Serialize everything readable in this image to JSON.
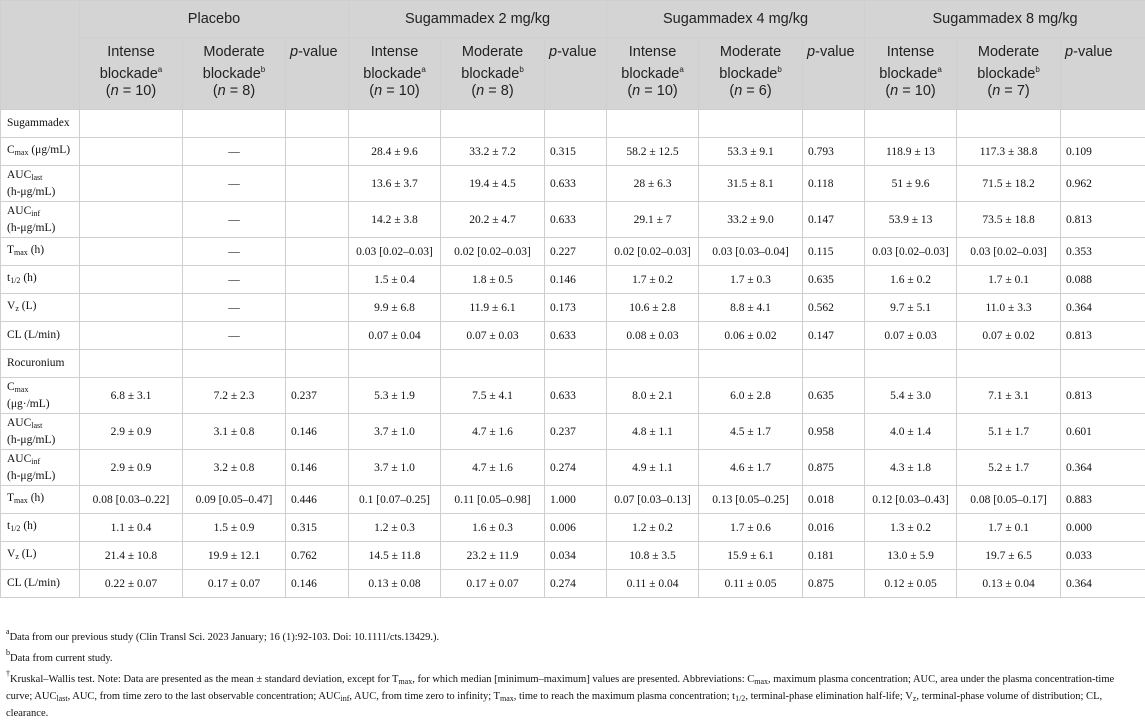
{
  "groups": [
    "Placebo",
    "Sugammadex 2 mg/kg",
    "Sugammadex 4 mg/kg",
    "Sugammadex 8 mg/kg"
  ],
  "subheads": [
    {
      "l1": "Intense",
      "l2": "blockade",
      "mark": "a",
      "n": "10"
    },
    {
      "l1": "Moderate",
      "l2": "blockade",
      "mark": "b",
      "n": "8"
    },
    {
      "pv": "p",
      "pv2": "-value"
    },
    {
      "l1": "Intense",
      "l2": "blockade",
      "mark": "a",
      "n": "10"
    },
    {
      "l1": "Moderate",
      "l2": "blockade",
      "mark": "b",
      "n": "8"
    },
    {
      "pv": "p",
      "pv2": "-value"
    },
    {
      "l1": "Intense",
      "l2": "blockade",
      "mark": "a",
      "n": "10"
    },
    {
      "l1": "Moderate",
      "l2": "blockade",
      "mark": "b",
      "n": "6"
    },
    {
      "pv": "p",
      "pv2": "-value"
    },
    {
      "l1": "Intense",
      "l2": "blockade",
      "mark": "a",
      "n": "10"
    },
    {
      "l1": "Moderate",
      "l2": "blockade",
      "mark": "b",
      "n": "7"
    },
    {
      "pv": "p",
      "pv2": "-value"
    }
  ],
  "n_prefix": "(",
  "n_letter": "n",
  "n_eq": " = ",
  "n_suffix": ")",
  "rows": [
    {
      "section": true,
      "label": "Sugammadex"
    },
    {
      "lbl": "C",
      "sub": "max",
      "rest": " (μg/mL)",
      "h": 28,
      "cells": [
        "",
        "—",
        "",
        "28.4 ± 9.6",
        "33.2 ± 7.2",
        "0.315",
        "58.2 ± 12.5",
        "53.3 ± 9.1",
        "0.793",
        "118.9 ± 13",
        "117.3 ± 38.8",
        "0.109"
      ]
    },
    {
      "lbl": "AUC",
      "sub": "last",
      "rest2": "(h-μg/mL)",
      "h": 36,
      "cells": [
        "",
        "—",
        "",
        "13.6 ± 3.7",
        "19.4 ± 4.5",
        "0.633",
        "28 ± 6.3",
        "31.5 ± 8.1",
        "0.118",
        "51 ± 9.6",
        "71.5 ± 18.2",
        "0.962"
      ]
    },
    {
      "lbl": "AUC",
      "sub": "inf",
      "rest2": "(h-μg/mL)",
      "h": 36,
      "cells": [
        "",
        "—",
        "",
        "14.2 ± 3.8",
        "20.2 ± 4.7",
        "0.633",
        "29.1 ± 7",
        "33.2 ± 9.0",
        "0.147",
        "53.9 ± 13",
        "73.5 ± 18.8",
        "0.813"
      ]
    },
    {
      "lbl": "T",
      "sub": "max",
      "rest": " (h)",
      "h": 28,
      "cells": [
        "",
        "—",
        "",
        "0.03 [0.02–0.03]",
        "0.02 [0.02–0.03]",
        "0.227",
        "0.02 [0.02–0.03]",
        "0.03 [0.03–0.04]",
        "0.115",
        "0.03 [0.02–0.03]",
        "0.03 [0.02–0.03]",
        "0.353"
      ]
    },
    {
      "lbl": "t",
      "sub": "1/2",
      "rest": " (h)",
      "h": 28,
      "cells": [
        "",
        "—",
        "",
        "1.5 ± 0.4",
        "1.8 ± 0.5",
        "0.146",
        "1.7 ± 0.2",
        "1.7 ± 0.3",
        "0.635",
        "1.6 ± 0.2",
        "1.7 ± 0.1",
        "0.088"
      ]
    },
    {
      "lbl": "V",
      "sub": "z",
      "rest": " (L)",
      "h": 28,
      "cells": [
        "",
        "—",
        "",
        "9.9 ± 6.8",
        "11.9 ± 6.1",
        "0.173",
        "10.6 ± 2.8",
        "8.8 ± 4.1",
        "0.562",
        "9.7 ± 5.1",
        "11.0 ± 3.3",
        "0.364"
      ]
    },
    {
      "lbl": "CL (L/min)",
      "h": 28,
      "cells": [
        "",
        "—",
        "",
        "0.07 ± 0.04",
        "0.07 ± 0.03",
        "0.633",
        "0.08 ± 0.03",
        "0.06 ± 0.02",
        "0.147",
        "0.07 ± 0.03",
        "0.07 ± 0.02",
        "0.813"
      ]
    },
    {
      "section": true,
      "label": "Rocuronium"
    },
    {
      "lbl": "C",
      "sub": "max",
      "rest2": "(μg·/mL)",
      "h": 36,
      "cells": [
        "6.8 ± 3.1",
        "7.2 ± 2.3",
        "0.237",
        "5.3 ± 1.9",
        "7.5 ± 4.1",
        "0.633",
        "8.0 ± 2.1",
        "6.0 ± 2.8",
        "0.635",
        "5.4 ± 3.0",
        "7.1 ± 3.1",
        "0.813"
      ]
    },
    {
      "lbl": "AUC",
      "sub": "last",
      "rest2": "(h-μg/mL)",
      "h": 36,
      "cells": [
        "2.9 ± 0.9",
        "3.1 ± 0.8",
        "0.146",
        "3.7 ± 1.0",
        "4.7 ± 1.6",
        "0.237",
        "4.8 ± 1.1",
        "4.5 ± 1.7",
        "0.958",
        "4.0 ± 1.4",
        "5.1 ± 1.7",
        "0.601"
      ]
    },
    {
      "lbl": "AUC",
      "sub": "inf",
      "rest2": "(h-μg/mL)",
      "h": 36,
      "cells": [
        "2.9 ± 0.9",
        "3.2 ± 0.8",
        "0.146",
        "3.7 ± 1.0",
        "4.7 ± 1.6",
        "0.274",
        "4.9 ± 1.1",
        "4.6 ± 1.7",
        "0.875",
        "4.3 ± 1.8",
        "5.2 ± 1.7",
        "0.364"
      ]
    },
    {
      "lbl": "T",
      "sub": "max",
      "rest": " (h)",
      "h": 28,
      "cells": [
        "0.08 [0.03–0.22]",
        "0.09 [0.05–0.47]",
        "0.446",
        "0.1 [0.07–0.25]",
        "0.11 [0.05–0.98]",
        "1.000",
        "0.07 [0.03–0.13]",
        "0.13 [0.05–0.25]",
        "0.018",
        "0.12 [0.03–0.43]",
        "0.08 [0.05–0.17]",
        "0.883"
      ]
    },
    {
      "lbl": "t",
      "sub": "1/2",
      "rest": " (h)",
      "h": 28,
      "cells": [
        "1.1 ± 0.4",
        "1.5 ± 0.9",
        "0.315",
        "1.2 ± 0.3",
        "1.6 ± 0.3",
        "0.006",
        "1.2 ± 0.2",
        "1.7 ± 0.6",
        "0.016",
        "1.3 ± 0.2",
        "1.7 ± 0.1",
        "0.000"
      ]
    },
    {
      "lbl": "V",
      "sub": "z",
      "rest": " (L)",
      "h": 28,
      "cells": [
        "21.4 ± 10.8",
        "19.9 ± 12.1",
        "0.762",
        "14.5 ± 11.8",
        "23.2 ± 11.9",
        "0.034",
        "10.8 ± 3.5",
        "15.9 ± 6.1",
        "0.181",
        "13.0 ± 5.9",
        "19.7 ± 6.5",
        "0.033"
      ]
    },
    {
      "lbl": "CL (L/min)",
      "h": 28,
      "cells": [
        "0.22 ± 0.07",
        "0.17 ± 0.07",
        "0.146",
        "0.13 ± 0.08",
        "0.17 ± 0.07",
        "0.274",
        "0.11 ± 0.04",
        "0.11 ± 0.05",
        "0.875",
        "0.12 ± 0.05",
        "0.13 ± 0.04",
        "0.364"
      ]
    }
  ],
  "notes": [
    {
      "parts": [
        {
          "t": "a",
          "s": "sup"
        },
        {
          "t": "Data from our previous study (Clin Transl Sci. 2023 January; 16 (1):92-103. Doi: 10.1111/cts.13429.)."
        }
      ]
    },
    {
      "parts": [
        {
          "t": "b",
          "s": "sup"
        },
        {
          "t": "Data from current study."
        }
      ]
    },
    {
      "parts": [
        {
          "t": "†",
          "s": "sup"
        },
        {
          "t": "Kruskal–Wallis test. Note: Data are presented as the mean ± standard deviation, except for T"
        },
        {
          "t": "max",
          "s": "sub"
        },
        {
          "t": ", for which median [minimum–maximum] values are presented. Abbreviations: C"
        },
        {
          "t": "max",
          "s": "sub"
        },
        {
          "t": ", maximum plasma concentration; AUC, area under the plasma concentration-time curve; AUC"
        },
        {
          "t": "last",
          "s": "sub"
        },
        {
          "t": ", AUC, from time zero to the last observable concentration; AUC"
        },
        {
          "t": "inf",
          "s": "sub"
        },
        {
          "t": ", AUC, from time zero to infinity; T"
        },
        {
          "t": "max",
          "s": "sub"
        },
        {
          "t": ", time to reach the maximum plasma concentration; t"
        },
        {
          "t": "1/2",
          "s": "sub"
        },
        {
          "t": ", terminal-phase elimination half-life; V"
        },
        {
          "t": "z",
          "s": "sub"
        },
        {
          "t": ", terminal-phase volume of distribution; CL, clearance."
        }
      ]
    }
  ]
}
